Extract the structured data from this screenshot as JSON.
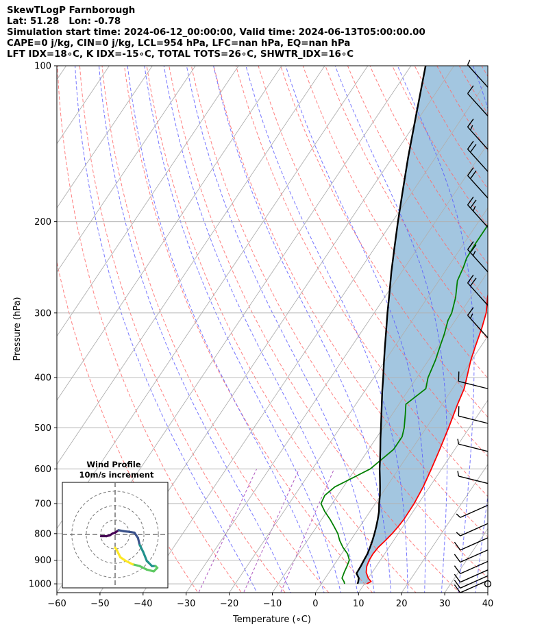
{
  "titles": {
    "line1": "SkewTLogP Farnborough",
    "line2": "Lat: 51.28   Lon: -0.78",
    "line3": "Simulation start time: 2024-06-12_00:00:00, Valid time: 2024-06-13T05:00:00.00",
    "line4": "CAPE=0 j/kg, CIN=0 j/kg, LCL=954 hPa, LFC=nan hPa, EQ=nan hPa",
    "line5": "LFT IDX=18∘C, K IDX=-15∘C, TOTAL TOTS=26∘C, SHWTR_IDX=16∘C"
  },
  "chart_data": {
    "type": "line",
    "skew_t": {
      "xlabel": "Temperature (∘C)",
      "ylabel": "Pressure (hPa)",
      "xlim": [
        -60,
        40
      ],
      "ylim": [
        1040,
        100
      ],
      "y_scale": "log",
      "grid": true,
      "x_ticks": [
        -60,
        -50,
        -40,
        -30,
        -20,
        -10,
        0,
        10,
        20,
        30,
        40
      ],
      "x_tick_labels": [
        "−60",
        "−50",
        "−40",
        "−30",
        "−20",
        "−10",
        "0",
        "10",
        "20",
        "30",
        "40"
      ],
      "y_ticks": [
        100,
        200,
        300,
        400,
        500,
        600,
        700,
        800,
        900,
        1000
      ],
      "y_tick_labels": [
        "100",
        "200",
        "300",
        "400",
        "500",
        "600",
        "700",
        "800",
        "900",
        "1000"
      ],
      "colors": {
        "temperature": "#ff0000",
        "dewpoint": "#008000",
        "parcel": "#000000",
        "shade": "#a3c6e0",
        "dry_adiabats": "#ff6b6b",
        "moist_adiabats": "#5555ff",
        "mixing_ratio": "#9b30b0",
        "isotherms": "#b0b0b0"
      },
      "series": [
        {
          "key": "temperature",
          "points": [
            [
              1000,
              10.5
            ],
            [
              990,
              11.2
            ],
            [
              975,
              10
            ],
            [
              950,
              8.6
            ],
            [
              925,
              7.8
            ],
            [
              900,
              7.4
            ],
            [
              875,
              7.3
            ],
            [
              850,
              7.5
            ],
            [
              825,
              8.1
            ],
            [
              800,
              8.6
            ],
            [
              775,
              8.9
            ],
            [
              750,
              9.1
            ],
            [
              700,
              9.0
            ],
            [
              650,
              8.5
            ],
            [
              600,
              7.6
            ],
            [
              550,
              6.5
            ],
            [
              500,
              5.2
            ],
            [
              450,
              3.6
            ],
            [
              420,
              2.7
            ],
            [
              400,
              1.6
            ],
            [
              370,
              -0.2
            ],
            [
              350,
              -1.2
            ],
            [
              320,
              -2.7
            ],
            [
              300,
              -4.0
            ],
            [
              280,
              -6.1
            ],
            [
              260,
              -8.0
            ],
            [
              245,
              -9.4
            ],
            [
              230,
              -9.9
            ],
            [
              220,
              -9.8
            ],
            [
              210,
              -9.8
            ],
            [
              200,
              -9.9
            ],
            [
              190,
              -9.9
            ],
            [
              180,
              -10.2
            ],
            [
              165,
              -10.8
            ],
            [
              150,
              -11.1
            ],
            [
              140,
              -10.8
            ],
            [
              130,
              -9.8
            ],
            [
              120,
              -8.4
            ],
            [
              110,
              -6.1
            ],
            [
              100,
              -3.3
            ]
          ]
        },
        {
          "key": "dewpoint",
          "points": [
            [
              1000,
              5.4
            ],
            [
              990,
              4.9
            ],
            [
              975,
              3.9
            ],
            [
              950,
              3.5
            ],
            [
              925,
              3.2
            ],
            [
              900,
              2.8
            ],
            [
              875,
              1.4
            ],
            [
              850,
              -0.7
            ],
            [
              825,
              -2.5
            ],
            [
              800,
              -4.0
            ],
            [
              775,
              -6.0
            ],
            [
              750,
              -8.1
            ],
            [
              725,
              -10.5
            ],
            [
              700,
              -12.6
            ],
            [
              675,
              -13.0
            ],
            [
              650,
              -12.0
            ],
            [
              600,
              -6.6
            ],
            [
              550,
              -4.2
            ],
            [
              520,
              -4.2
            ],
            [
              500,
              -5.1
            ],
            [
              470,
              -7.0
            ],
            [
              450,
              -8.4
            ],
            [
              420,
              -6.2
            ],
            [
              400,
              -7.4
            ],
            [
              370,
              -8.4
            ],
            [
              350,
              -9.4
            ],
            [
              330,
              -10.4
            ],
            [
              310,
              -11.7
            ],
            [
              300,
              -12.0
            ],
            [
              280,
              -13.5
            ],
            [
              260,
              -15.7
            ],
            [
              245,
              -16.4
            ],
            [
              235,
              -17.1
            ],
            [
              220,
              -17.3
            ],
            [
              200,
              -17.3
            ],
            [
              185,
              -17.6
            ],
            [
              175,
              -20.4
            ],
            [
              165,
              -23.6
            ],
            [
              150,
              -25.0
            ],
            [
              140,
              -25.4
            ],
            [
              130,
              -25.5
            ],
            [
              115,
              -26.1
            ],
            [
              100,
              -27.2
            ]
          ]
        },
        {
          "key": "parcel",
          "points": [
            [
              1000,
              8.4
            ],
            [
              990,
              8.2
            ],
            [
              975,
              7.8
            ],
            [
              954,
              6.5
            ],
            [
              950,
              6.5
            ],
            [
              925,
              6.4
            ],
            [
              900,
              6.2
            ],
            [
              875,
              6.0
            ],
            [
              850,
              5.6
            ],
            [
              825,
              5.1
            ],
            [
              800,
              4.5
            ],
            [
              775,
              3.8
            ],
            [
              750,
              3.0
            ],
            [
              725,
              2.1
            ],
            [
              700,
              0.9
            ],
            [
              675,
              -0.2
            ],
            [
              650,
              -1.5
            ],
            [
              625,
              -2.9
            ],
            [
              600,
              -4.4
            ],
            [
              575,
              -5.8
            ],
            [
              550,
              -7.3
            ],
            [
              525,
              -8.9
            ],
            [
              500,
              -10.5
            ],
            [
              475,
              -12.2
            ],
            [
              450,
              -14.0
            ],
            [
              425,
              -15.9
            ],
            [
              400,
              -17.8
            ],
            [
              375,
              -19.9
            ],
            [
              350,
              -22.1
            ],
            [
              325,
              -24.4
            ],
            [
              300,
              -26.9
            ],
            [
              275,
              -29.5
            ],
            [
              250,
              -32.4
            ],
            [
              225,
              -35.4
            ],
            [
              200,
              -38.7
            ],
            [
              175,
              -42.3
            ],
            [
              150,
              -46.4
            ],
            [
              125,
              -51.0
            ],
            [
              100,
              -56.6
            ]
          ]
        }
      ],
      "wind_barbs": [
        {
          "p": 1000,
          "speed": 0
        },
        {
          "p": 985,
          "speed": 10
        },
        {
          "p": 965,
          "speed": 10
        },
        {
          "p": 940,
          "speed": 10
        },
        {
          "p": 905,
          "speed": 10
        },
        {
          "p": 860,
          "speed": 10
        },
        {
          "p": 815,
          "speed": 10
        },
        {
          "p": 765,
          "speed": 5
        },
        {
          "p": 705,
          "speed": 5
        },
        {
          "p": 640,
          "speed": 5
        },
        {
          "p": 555,
          "speed": 5
        },
        {
          "p": 490,
          "speed": 10
        },
        {
          "p": 420,
          "speed": 10
        },
        {
          "p": 335,
          "speed": 15
        },
        {
          "p": 290,
          "speed": 20
        },
        {
          "p": 250,
          "speed": 25
        },
        {
          "p": 205,
          "speed": 25
        },
        {
          "p": 180,
          "speed": 20
        },
        {
          "p": 160,
          "speed": 20
        },
        {
          "p": 145,
          "speed": 15
        },
        {
          "p": 125,
          "speed": 10
        },
        {
          "p": 110,
          "speed": 5
        }
      ]
    },
    "hodograph": {
      "title": "Wind Profile",
      "subtitle": "10m/s increment",
      "rings": [
        10,
        20,
        30
      ],
      "range": 30,
      "colormap": [
        "#440154",
        "#3b528b",
        "#21918c",
        "#5ec962",
        "#fde725"
      ],
      "points": [
        [
          -8,
          -1
        ],
        [
          -5,
          -1
        ],
        [
          -3,
          -0.5
        ],
        [
          -1.5,
          0.5
        ],
        [
          0,
          1
        ],
        [
          2,
          2.4
        ],
        [
          5,
          1.8
        ],
        [
          8,
          1.5
        ],
        [
          11,
          1
        ],
        [
          13,
          -2
        ],
        [
          14,
          -6
        ],
        [
          16,
          -10
        ],
        [
          18,
          -15
        ],
        [
          21,
          -18
        ],
        [
          23,
          -18
        ],
        [
          24,
          -19
        ],
        [
          22,
          -21
        ],
        [
          18,
          -20
        ],
        [
          14,
          -18
        ],
        [
          10,
          -17
        ],
        [
          6,
          -15
        ],
        [
          3,
          -13
        ],
        [
          1,
          -9
        ],
        [
          0,
          -7.5
        ]
      ]
    }
  }
}
